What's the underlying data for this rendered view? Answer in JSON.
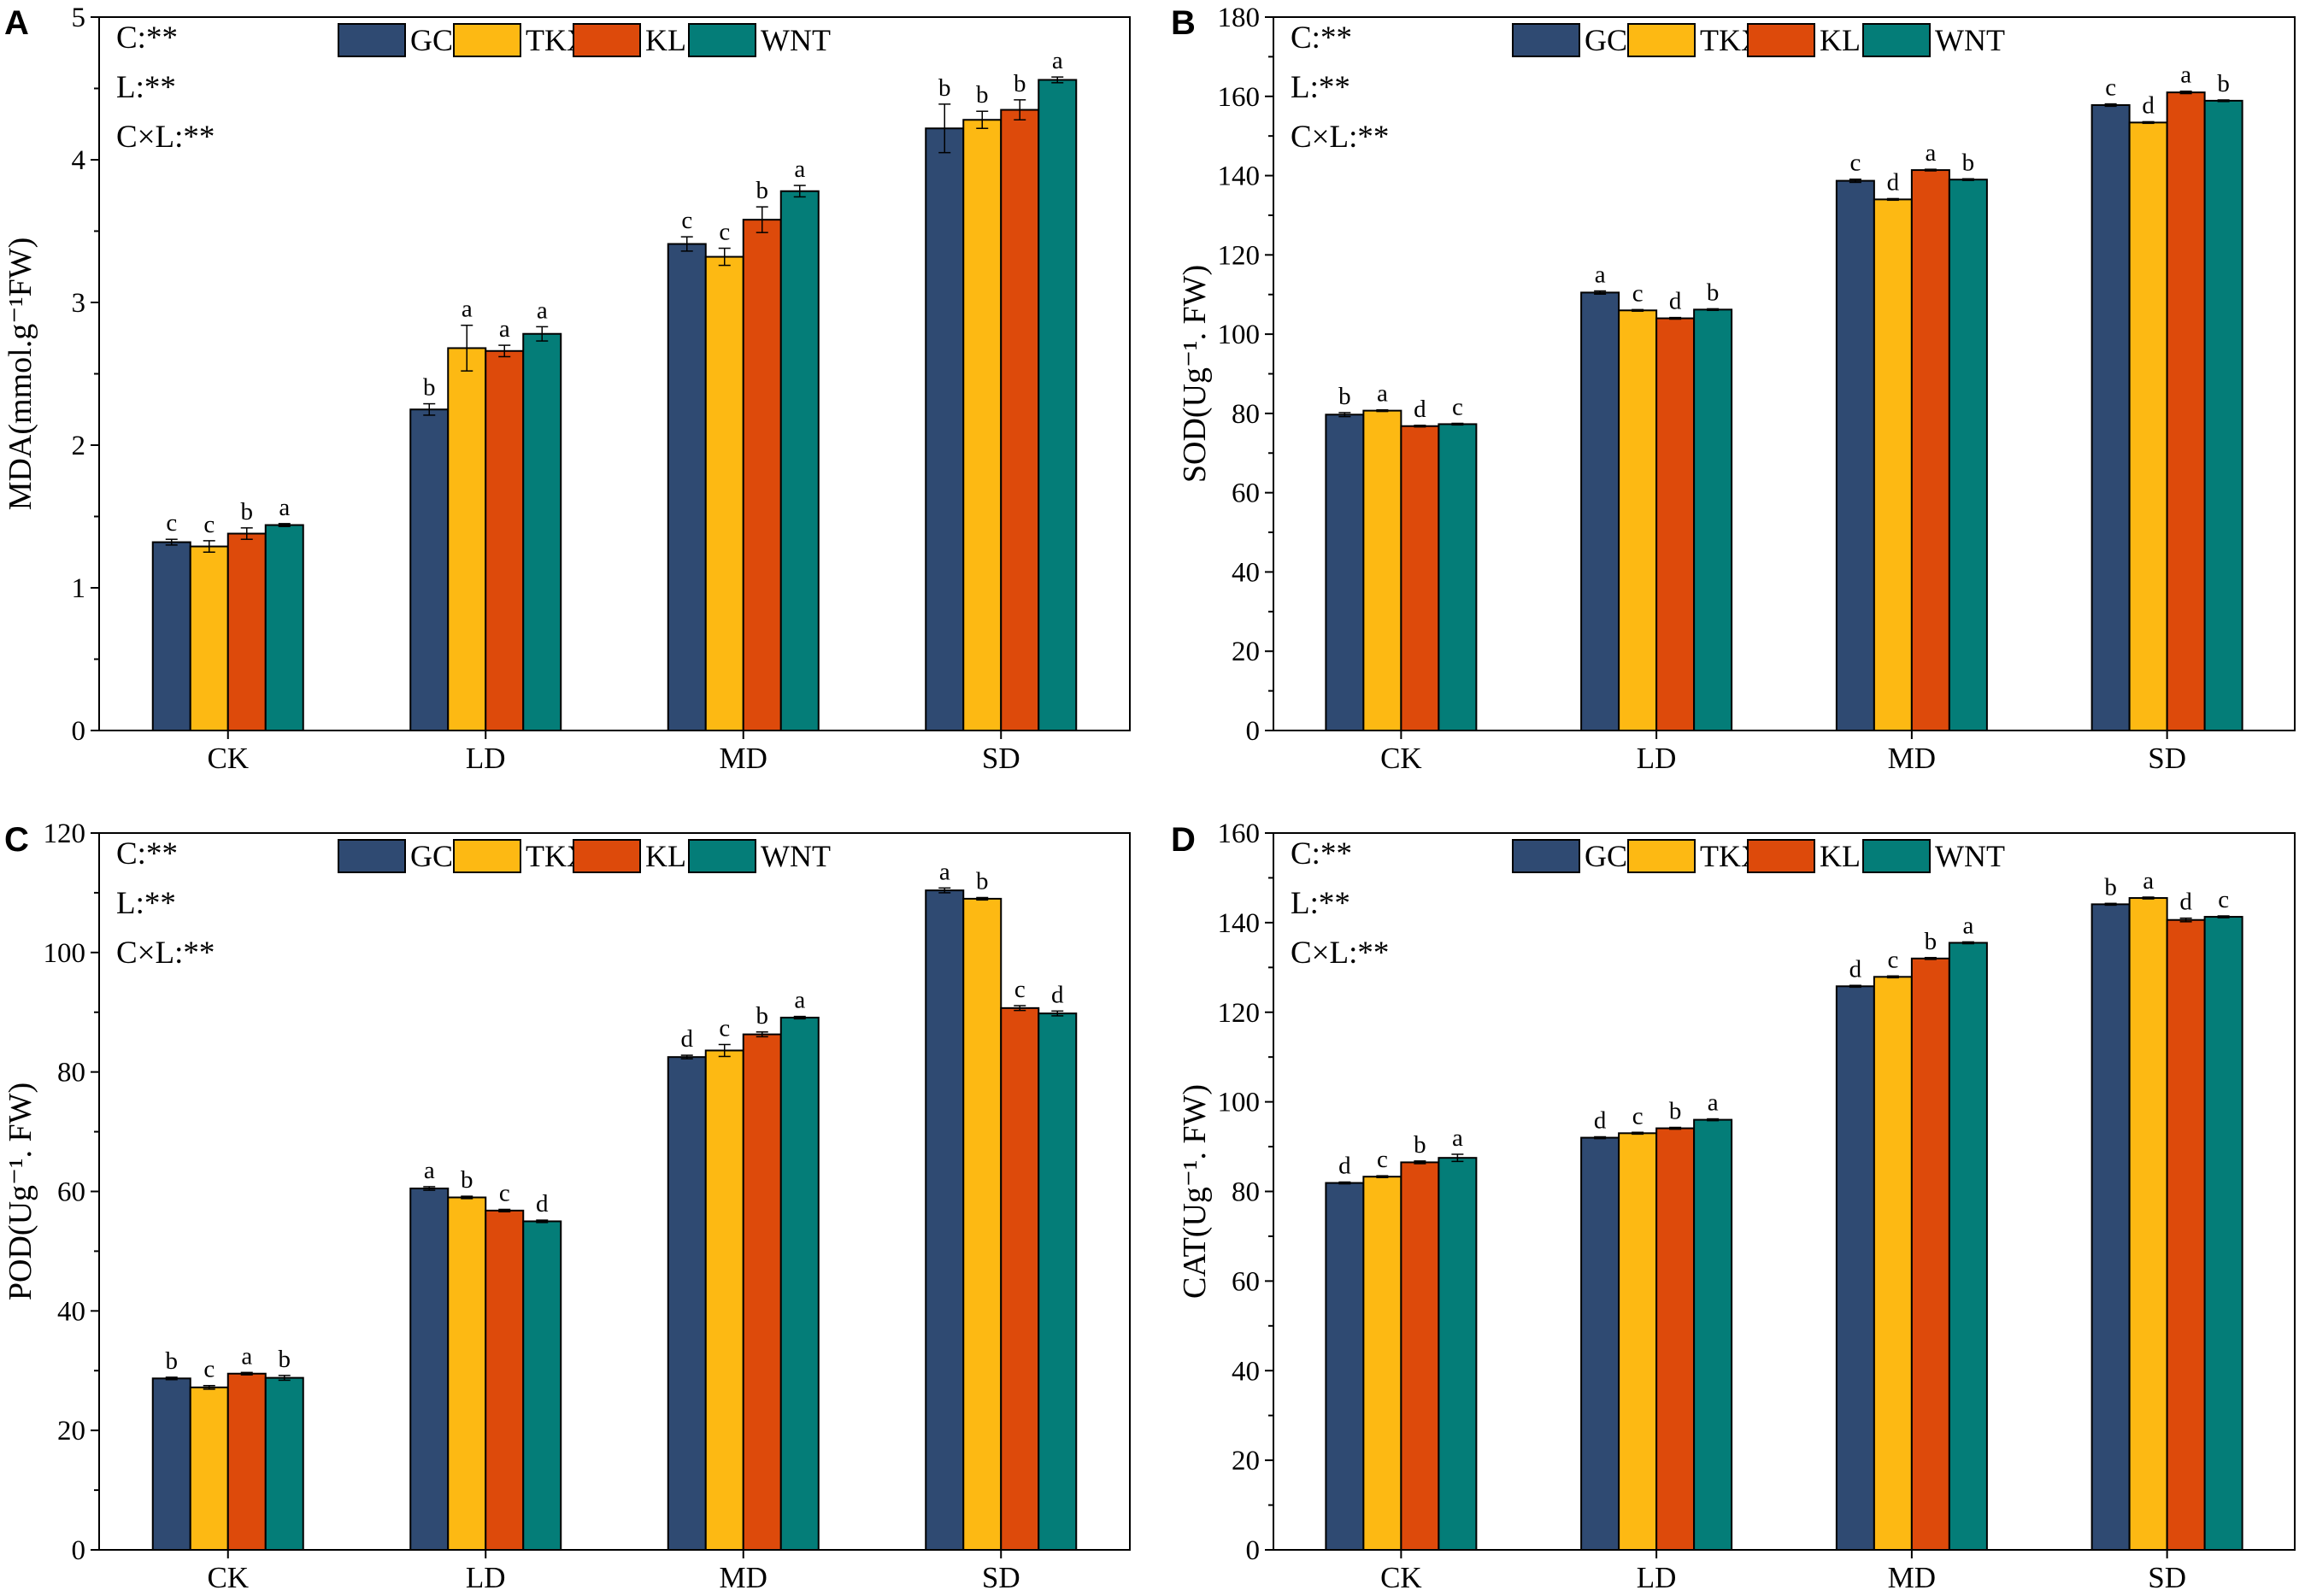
{
  "colors": {
    "GC": "#2F4A72",
    "TKX": "#FDB913",
    "KL": "#DD4A0B",
    "WNT": "#047D78"
  },
  "legend": [
    "GC",
    "TKX",
    "KL",
    "WNT"
  ],
  "categories": [
    "CK",
    "LD",
    "MD",
    "SD"
  ],
  "stats": [
    "C:**",
    "L:**",
    "C×L:**"
  ],
  "chart_data": [
    {
      "panel": "A",
      "type": "bar",
      "ylabel": "MDA(mmol.g⁻¹FW)",
      "ylim": [
        0,
        5
      ],
      "yticks": [
        0,
        1,
        2,
        3,
        4,
        5
      ],
      "categories": [
        "CK",
        "LD",
        "MD",
        "SD"
      ],
      "series": [
        {
          "name": "GC",
          "values": [
            1.32,
            2.25,
            3.41,
            4.22
          ],
          "errors": [
            0.02,
            0.04,
            0.05,
            0.17
          ],
          "letters": [
            "c",
            "b",
            "c",
            "b"
          ]
        },
        {
          "name": "TKX",
          "values": [
            1.29,
            2.68,
            3.32,
            4.28
          ],
          "errors": [
            0.04,
            0.16,
            0.06,
            0.06
          ],
          "letters": [
            "c",
            "a",
            "c",
            "b"
          ]
        },
        {
          "name": "KL",
          "values": [
            1.38,
            2.66,
            3.58,
            4.35
          ],
          "errors": [
            0.04,
            0.04,
            0.09,
            0.07
          ],
          "letters": [
            "b",
            "a",
            "b",
            "b"
          ]
        },
        {
          "name": "WNT",
          "values": [
            1.44,
            2.78,
            3.78,
            4.56
          ],
          "errors": [
            0.01,
            0.05,
            0.04,
            0.02
          ],
          "letters": [
            "a",
            "a",
            "a",
            "a"
          ]
        }
      ]
    },
    {
      "panel": "B",
      "type": "bar",
      "ylabel": "SOD(Ug⁻¹. FW)",
      "ylim": [
        0,
        180
      ],
      "yticks": [
        0,
        20,
        40,
        60,
        80,
        100,
        120,
        140,
        160,
        180
      ],
      "categories": [
        "CK",
        "LD",
        "MD",
        "SD"
      ],
      "series": [
        {
          "name": "GC",
          "values": [
            79.7,
            110.5,
            138.7,
            157.8
          ],
          "errors": [
            0.5,
            0.4,
            0.4,
            0.3
          ],
          "letters": [
            "b",
            "a",
            "c",
            "c"
          ]
        },
        {
          "name": "TKX",
          "values": [
            80.7,
            106.0,
            134.0,
            153.4
          ],
          "errors": [
            0.2,
            0.2,
            0.2,
            0.2
          ],
          "letters": [
            "a",
            "c",
            "d",
            "d"
          ]
        },
        {
          "name": "KL",
          "values": [
            76.8,
            104.0,
            141.4,
            161.0
          ],
          "errors": [
            0.2,
            0.2,
            0.2,
            0.3
          ],
          "letters": [
            "d",
            "d",
            "a",
            "a"
          ]
        },
        {
          "name": "WNT",
          "values": [
            77.3,
            106.2,
            139.0,
            158.9
          ],
          "errors": [
            0.2,
            0.2,
            0.2,
            0.2
          ],
          "letters": [
            "c",
            "b",
            "b",
            "b"
          ]
        }
      ]
    },
    {
      "panel": "C",
      "type": "bar",
      "ylabel": "POD(Ug⁻¹. FW)",
      "ylim": [
        0,
        120
      ],
      "yticks": [
        0,
        20,
        40,
        60,
        80,
        100,
        120
      ],
      "categories": [
        "CK",
        "LD",
        "MD",
        "SD"
      ],
      "series": [
        {
          "name": "GC",
          "values": [
            28.7,
            60.5,
            82.5,
            110.4
          ],
          "errors": [
            0.2,
            0.3,
            0.3,
            0.4
          ],
          "letters": [
            "b",
            "a",
            "d",
            "a"
          ]
        },
        {
          "name": "TKX",
          "values": [
            27.2,
            59.0,
            83.6,
            109.0
          ],
          "errors": [
            0.3,
            0.2,
            1.0,
            0.2
          ],
          "letters": [
            "c",
            "b",
            "c",
            "b"
          ]
        },
        {
          "name": "KL",
          "values": [
            29.5,
            56.8,
            86.3,
            90.7
          ],
          "errors": [
            0.2,
            0.2,
            0.4,
            0.4
          ],
          "letters": [
            "a",
            "c",
            "b",
            "c"
          ]
        },
        {
          "name": "WNT",
          "values": [
            28.8,
            55.0,
            89.1,
            89.8
          ],
          "errors": [
            0.4,
            0.2,
            0.2,
            0.4
          ],
          "letters": [
            "b",
            "d",
            "a",
            "d"
          ]
        }
      ]
    },
    {
      "panel": "D",
      "type": "bar",
      "ylabel": "CAT(Ug⁻¹. FW)",
      "ylim": [
        0,
        160
      ],
      "yticks": [
        0,
        20,
        40,
        60,
        80,
        100,
        120,
        140,
        160
      ],
      "categories": [
        "CK",
        "LD",
        "MD",
        "SD"
      ],
      "series": [
        {
          "name": "GC",
          "values": [
            81.9,
            92.0,
            125.8,
            144.1
          ],
          "errors": [
            0.2,
            0.2,
            0.2,
            0.2
          ],
          "letters": [
            "d",
            "d",
            "d",
            "b"
          ]
        },
        {
          "name": "TKX",
          "values": [
            83.3,
            93.0,
            127.9,
            145.5
          ],
          "errors": [
            0.2,
            0.2,
            0.2,
            0.2
          ],
          "letters": [
            "c",
            "c",
            "c",
            "a"
          ]
        },
        {
          "name": "KL",
          "values": [
            86.5,
            94.1,
            132.0,
            140.6
          ],
          "errors": [
            0.3,
            0.2,
            0.2,
            0.4
          ],
          "letters": [
            "b",
            "b",
            "b",
            "d"
          ]
        },
        {
          "name": "WNT",
          "values": [
            87.5,
            96.0,
            135.5,
            141.3
          ],
          "errors": [
            0.8,
            0.2,
            0.2,
            0.2
          ],
          "letters": [
            "a",
            "a",
            "a",
            "c"
          ]
        }
      ]
    }
  ]
}
